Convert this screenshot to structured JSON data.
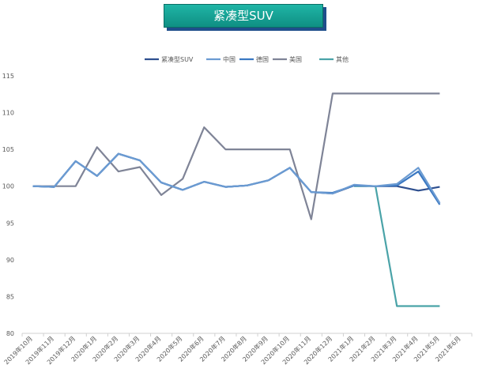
{
  "chart_data": {
    "type": "line",
    "title": "紧凑型SUV",
    "xlabel": "",
    "ylabel": "",
    "ylim": [
      80,
      115
    ],
    "yticks": [
      80,
      85,
      90,
      95,
      100,
      105,
      110,
      115
    ],
    "grid": false,
    "legend_position": "top",
    "categories": [
      "2019年10月",
      "2019年11月",
      "2019年12月",
      "2020年1月",
      "2020年2月",
      "2020年3月",
      "2020年4月",
      "2020年5月",
      "2020年6月",
      "2020年7月",
      "2020年8月",
      "2020年9月",
      "2020年10月",
      "2020年11月",
      "2020年12月",
      "2021年1月",
      "2021年2月",
      "2021年3月",
      "2021年4月",
      "2021年5月",
      "2021年6月"
    ],
    "series": [
      {
        "name": "紧凑型SUV",
        "color": "#2e4f8f",
        "values": [
          100,
          99.9,
          103.4,
          101.4,
          104.4,
          103.5,
          100.5,
          99.5,
          100.6,
          99.9,
          100.1,
          100.8,
          102.5,
          99.2,
          99.0,
          100.1,
          100.0,
          100.0,
          99.4,
          99.9,
          null
        ]
      },
      {
        "name": "中国",
        "color": "#6b9bd2",
        "values": [
          100,
          99.9,
          103.4,
          101.4,
          104.4,
          103.5,
          100.5,
          99.5,
          100.6,
          99.9,
          100.1,
          100.8,
          102.5,
          99.2,
          99.0,
          100.2,
          100.0,
          100.3,
          102.5,
          97.7,
          null
        ]
      },
      {
        "name": "德国",
        "color": "#3a78c2",
        "values": [
          100,
          99.9,
          103.4,
          101.4,
          104.4,
          103.5,
          100.5,
          99.5,
          100.6,
          99.9,
          100.1,
          100.8,
          102.5,
          99.2,
          99.1,
          100.1,
          100.0,
          100.1,
          102.0,
          97.5,
          null
        ]
      },
      {
        "name": "美国",
        "color": "#7f8497",
        "values": [
          100,
          100,
          100,
          105.3,
          102.0,
          102.6,
          98.8,
          101.0,
          108.0,
          105.0,
          105.0,
          105.0,
          105.0,
          95.5,
          112.6,
          112.6,
          112.6,
          112.6,
          112.6,
          112.6,
          null
        ]
      },
      {
        "name": "其他",
        "color": "#4aa3a8",
        "values": [
          null,
          null,
          null,
          null,
          null,
          null,
          null,
          null,
          null,
          null,
          null,
          null,
          null,
          null,
          null,
          100,
          100,
          83.7,
          83.7,
          83.7,
          null
        ]
      }
    ]
  }
}
